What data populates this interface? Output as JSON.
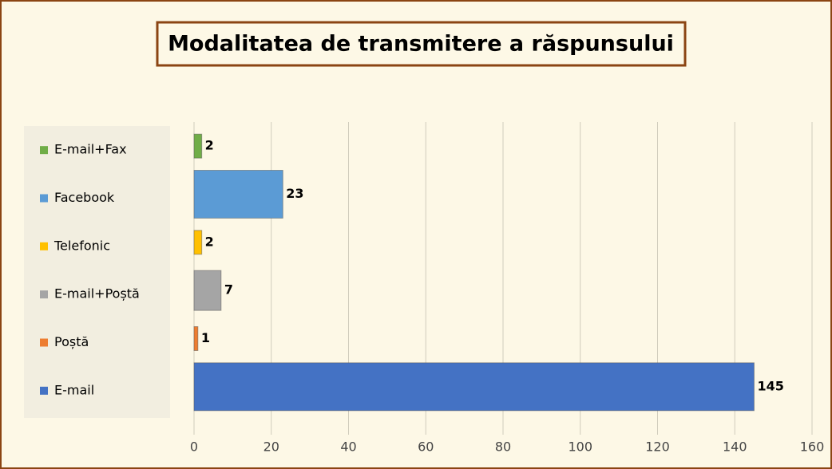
{
  "chart_data": {
    "type": "bar",
    "orientation": "horizontal",
    "title": "Modalitatea de transmitere a răspunsului",
    "categories": [
      "E-mail+Fax",
      "Facebook",
      "Telefonic",
      "E-mail+Poștă",
      "Poștă",
      "E-mail"
    ],
    "values": [
      2,
      23,
      2,
      7,
      1,
      145
    ],
    "colors": [
      "#70ad47",
      "#5b9bd5",
      "#ffc000",
      "#a5a5a5",
      "#ed7d31",
      "#4472c4"
    ],
    "xlim": [
      0,
      160
    ],
    "xticks": [
      0,
      20,
      40,
      60,
      80,
      100,
      120,
      140,
      160
    ],
    "grid": true,
    "legend": "left"
  }
}
